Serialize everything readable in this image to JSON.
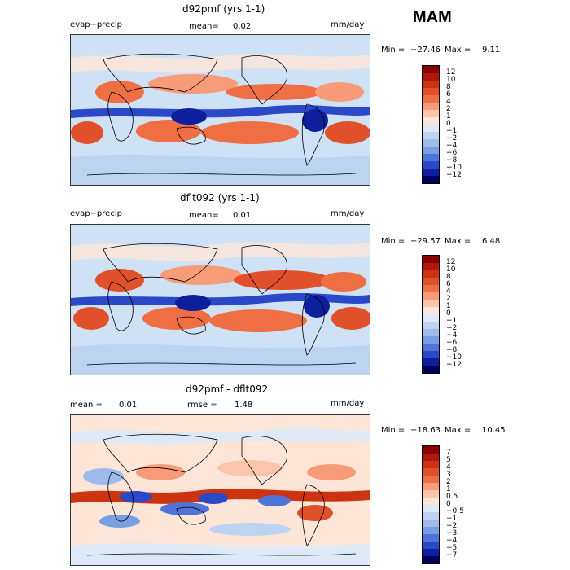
{
  "season": "MAM",
  "panels": [
    {
      "title": "d92pmf (yrs 1-1)",
      "left_label": "evap−precip",
      "mean_label": "mean=",
      "mean_value": "0.02",
      "units": "mm/day",
      "min_label": "Min =",
      "min_value": "−27.46",
      "max_label": "Max =",
      "max_value": "9.11",
      "colorbar_labels": [
        "12",
        "10",
        "8",
        "6",
        "4",
        "2",
        "1",
        "0",
        "−1",
        "−2",
        "−4",
        "−6",
        "−8",
        "−10",
        "−12"
      ],
      "colors": [
        "#8b0000",
        "#b0180f",
        "#cc3311",
        "#e0502a",
        "#f06e44",
        "#f89b78",
        "#fcc4aa",
        "#fde6d8",
        "#dde9f7",
        "#bcd4f2",
        "#9fbbeb",
        "#7a9ee3",
        "#5073d8",
        "#2a48c8",
        "#0d1f9c",
        "#00005e"
      ]
    },
    {
      "title": "dflt092 (yrs 1-1)",
      "left_label": "evap−precip",
      "mean_label": "mean=",
      "mean_value": "0.01",
      "units": "mm/day",
      "min_label": "Min =",
      "min_value": "−29.57",
      "max_label": "Max =",
      "max_value": "6.48",
      "colorbar_labels": [
        "12",
        "10",
        "8",
        "6",
        "4",
        "2",
        "1",
        "0",
        "−1",
        "−2",
        "−4",
        "−6",
        "−8",
        "−10",
        "−12"
      ],
      "colors": [
        "#8b0000",
        "#b0180f",
        "#cc3311",
        "#e0502a",
        "#f06e44",
        "#f89b78",
        "#fcc4aa",
        "#fde6d8",
        "#dde9f7",
        "#bcd4f2",
        "#9fbbeb",
        "#7a9ee3",
        "#5073d8",
        "#2a48c8",
        "#0d1f9c",
        "#00005e"
      ]
    },
    {
      "title": "d92pmf - dflt092",
      "mean_label": "mean =",
      "mean_value": "0.01",
      "rmse_label": "rmse =",
      "rmse_value": "1.48",
      "units": "mm/day",
      "min_label": "Min =",
      "min_value": "−18.63",
      "max_label": "Max =",
      "max_value": "10.45",
      "colorbar_labels": [
        "7",
        "5",
        "4",
        "3",
        "2",
        "1",
        "0.5",
        "0",
        "−0.5",
        "−1",
        "−2",
        "−3",
        "−4",
        "−5",
        "−7"
      ],
      "colors": [
        "#8b0000",
        "#b0180f",
        "#cc3311",
        "#e0502a",
        "#f06e44",
        "#f89b78",
        "#fcc4aa",
        "#fde6d8",
        "#dde9f7",
        "#bcd4f2",
        "#9fbbeb",
        "#7a9ee3",
        "#5073d8",
        "#2a48c8",
        "#0d1f9c",
        "#00005e"
      ]
    }
  ],
  "chart_data": {
    "type": "heatmap",
    "title": "MAM evap−precip (mm/day)",
    "maps": [
      {
        "name": "d92pmf (yrs 1-1)",
        "mean": 0.02,
        "min": -27.46,
        "max": 9.11,
        "levels": [
          -12,
          -10,
          -8,
          -6,
          -4,
          -2,
          -1,
          0,
          1,
          2,
          4,
          6,
          8,
          10,
          12
        ]
      },
      {
        "name": "dflt092 (yrs 1-1)",
        "mean": 0.01,
        "min": -29.57,
        "max": 6.48,
        "levels": [
          -12,
          -10,
          -8,
          -6,
          -4,
          -2,
          -1,
          0,
          1,
          2,
          4,
          6,
          8,
          10,
          12
        ]
      },
      {
        "name": "d92pmf - dflt092",
        "mean": 0.01,
        "rmse": 1.48,
        "min": -18.63,
        "max": 10.45,
        "levels": [
          -7,
          -5,
          -4,
          -3,
          -2,
          -1,
          -0.5,
          0,
          0.5,
          1,
          2,
          3,
          4,
          5,
          7
        ]
      }
    ],
    "units": "mm/day"
  }
}
